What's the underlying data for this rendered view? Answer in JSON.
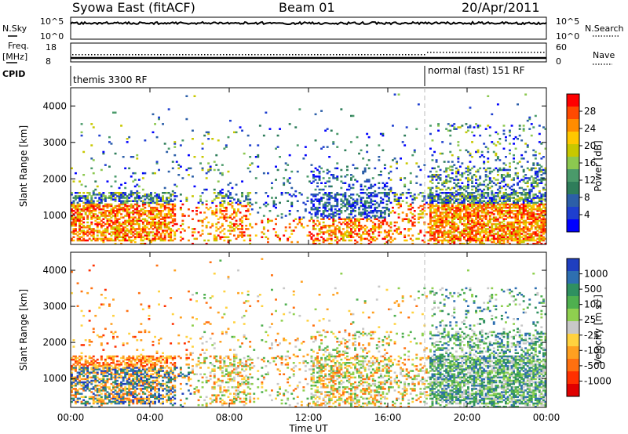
{
  "header": {
    "station": "Syowa East (fitACF)",
    "beam": "Beam 01",
    "date": "20/Apr/2011"
  },
  "top_panels": {
    "nsky_label": "N.Sky",
    "nsearch_label": "N.Search",
    "nsky_ticks": [
      "10^5",
      "10^0"
    ],
    "nsky_right_ticks": [
      "10^5",
      "10^0"
    ],
    "freq_label_1": "Freq.",
    "freq_label_2": "[MHz]",
    "freq_ticks": [
      "18",
      "8"
    ],
    "nave_label": "Nave",
    "nave_ticks": [
      "60",
      "0"
    ],
    "cpid_label": "CPID",
    "cpid_mode_1": "themis 3300 RF",
    "cpid_mode_2": "normal (fast) 151 RF"
  },
  "power_colorbar": {
    "title": "Power [dB]",
    "ticks": [
      "28",
      "24",
      "20",
      "16",
      "12",
      "8",
      "4"
    ],
    "colors": [
      "#ff0000",
      "#ff4a00",
      "#ff8c00",
      "#ffc800",
      "#c8c800",
      "#8cc850",
      "#4a9a6a",
      "#2e7d5a",
      "#2c5fa8",
      "#1e3fcf",
      "#0000ff"
    ]
  },
  "velocity_colorbar": {
    "title": "Velocity [m s",
    "title_sup": "-1",
    "title_end": "]",
    "ticks": [
      "1000",
      "500",
      "100",
      "25",
      "-25",
      "-100",
      "-500",
      "-1000"
    ],
    "colors": [
      "#1f3fbf",
      "#2e6fb0",
      "#2f9060",
      "#4fb04f",
      "#8fd04f",
      "#c8c8c8",
      "#ffd23f",
      "#ffa020",
      "#ff7010",
      "#ff3000",
      "#e00000"
    ]
  },
  "chart_data": [
    {
      "type": "heatmap",
      "title": "",
      "xlabel": "Time UT",
      "ylabel": "Slant Range [km]",
      "xlim": [
        "00:00",
        "24:00"
      ],
      "ylim": [
        200,
        4500
      ],
      "xticks": [
        "00:00",
        "04:00",
        "08:00",
        "12:00",
        "16:00",
        "20:00",
        "00:00"
      ],
      "yticks": [
        "1000",
        "2000",
        "3000",
        "4000"
      ],
      "colorbar": "Power [dB]",
      "clim": [
        0,
        32
      ],
      "mode_change_time": "18:00"
    },
    {
      "type": "heatmap",
      "title": "",
      "xlabel": "Time UT",
      "ylabel": "Slant Range [km]",
      "xlim": [
        "00:00",
        "24:00"
      ],
      "ylim": [
        200,
        4500
      ],
      "xticks": [
        "00:00",
        "04:00",
        "08:00",
        "12:00",
        "16:00",
        "20:00",
        "00:00"
      ],
      "yticks": [
        "1000",
        "2000",
        "3000",
        "4000"
      ],
      "colorbar": "Velocity [m s-1]",
      "clim": [
        -1000,
        1000
      ],
      "mode_change_time": "18:00"
    }
  ]
}
